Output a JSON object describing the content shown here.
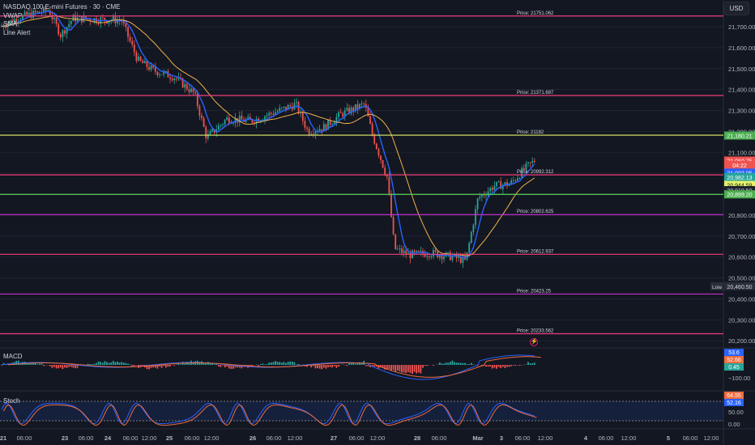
{
  "legend": {
    "symbol": "NASDAQ 100 E-mini Futures · 30 · CME",
    "indicators": [
      "VWAP",
      "SMA",
      "Line Alert"
    ]
  },
  "currency_button": "USD",
  "colors": {
    "background": "#131722",
    "grid": "#1f2430",
    "axis_text": "#b2b5be",
    "candle_up": "#26a69a",
    "candle_down": "#ef5350",
    "vwap": "#2962ff",
    "sma": "#f0b04a",
    "alert_pink": "#ef3f78",
    "alert_yellow": "#e4f26a",
    "alert_green": "#5ad35a",
    "alert_purple": "#c22ec9"
  },
  "price_axis": {
    "ticks": [
      "21,700.00",
      "21,600.00",
      "21,500.00",
      "21,400.00",
      "21,300.00",
      "21,200.00",
      "21,100.00",
      "21,000.00",
      "20,900.00",
      "20,800.00",
      "20,700.00",
      "20,600.00",
      "20,500.00",
      "20,400.00",
      "20,300.00",
      "20,200.00"
    ],
    "tick_values": [
      21700,
      21600,
      21500,
      21400,
      21300,
      21200,
      21100,
      21000,
      20900,
      20800,
      20700,
      20600,
      20500,
      20400,
      20300,
      20200
    ]
  },
  "price_labels": [
    {
      "text": "21,180.21",
      "value": 21180.21,
      "bg": "#4caf50",
      "fg": "#ffffff"
    },
    {
      "text": "21,060.75",
      "value": 21060.75,
      "bg": "#ef5350",
      "fg": "#ffffff"
    },
    {
      "text": "04:22",
      "value": 21040,
      "bg": "#ef5350",
      "fg": "#ffffff"
    },
    {
      "text": "21,003.05",
      "value": 21003.05,
      "bg": "#2962ff",
      "fg": "#ffffff"
    },
    {
      "text": "20,982.13",
      "value": 20982.13,
      "bg": "#26a69a",
      "fg": "#ffffff"
    },
    {
      "text": "20,944.59",
      "value": 20944.59,
      "bg": "#e4f26a",
      "fg": "#131722"
    },
    {
      "text": "20,919.50",
      "value": 20919.5,
      "bg": "#1e222d",
      "fg": "#d1d4dc"
    },
    {
      "text": "20,899.20",
      "value": 20899.2,
      "bg": "#4caf50",
      "fg": "#ffffff"
    },
    {
      "text": "20,460.50",
      "value": 20460.5,
      "bg": "#2a2e39",
      "fg": "#d1d4dc"
    }
  ],
  "low_tag": "Low",
  "alert_lines": [
    {
      "label": "Price: 21751.062",
      "value": 21751.062,
      "color": "#ef3f78"
    },
    {
      "label": "Price: 21371.687",
      "value": 21371.687,
      "color": "#ef3f78"
    },
    {
      "label": "Price: 21182",
      "value": 21182,
      "color": "#e4f26a"
    },
    {
      "label": "Price: 20992.312",
      "value": 20992.312,
      "color": "#ef3f78"
    },
    {
      "label": "",
      "value": 20899.2,
      "color": "#5ad35a"
    },
    {
      "label": "Price: 20802.625",
      "value": 20802.625,
      "color": "#c22ec9"
    },
    {
      "label": "Price: 20612.937",
      "value": 20612.937,
      "color": "#ef3f78"
    },
    {
      "label": "Price: 20423.25",
      "value": 20423.25,
      "color": "#c22ec9"
    },
    {
      "label": "Price: 20233.562",
      "value": 20233.562,
      "color": "#ef3f78"
    }
  ],
  "time_axis": {
    "labels": [
      "21",
      "06:00",
      "23",
      "06:00",
      "24",
      "06:00",
      "12:00",
      "25",
      "06:00",
      "12:00",
      "26",
      "06:00",
      "12:00",
      "27",
      "06:00",
      "12:00",
      "28",
      "06:00",
      "Mar",
      "3",
      "06:00",
      "12:00",
      "4",
      "06:00",
      "12:00",
      "5",
      "06:00",
      "12:00"
    ]
  },
  "macd": {
    "label": "MACD",
    "ticks": [
      "−100.00"
    ],
    "labels": [
      {
        "text": "53.6",
        "bg": "#2962ff",
        "fg": "#ffffff"
      },
      {
        "text": "52.66",
        "bg": "#ef6c3e",
        "fg": "#ffffff"
      },
      {
        "text": "0.45",
        "bg": "#26a69a",
        "fg": "#ffffff"
      }
    ]
  },
  "stoch": {
    "label": "Stoch",
    "ticks": [
      "50.00",
      "0.00"
    ],
    "labels": [
      {
        "text": "64.55",
        "bg": "#ef6c3e",
        "fg": "#ffffff"
      },
      {
        "text": "52.16",
        "bg": "#2962ff",
        "fg": "#ffffff"
      }
    ]
  },
  "alert_marker": "⚡"
}
